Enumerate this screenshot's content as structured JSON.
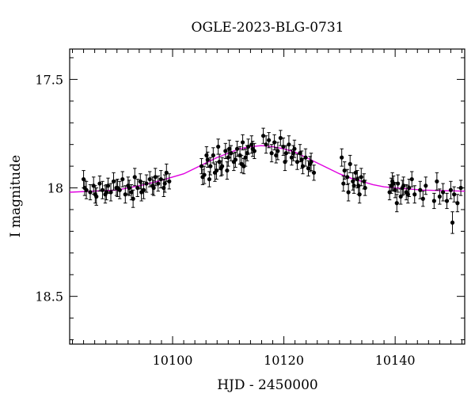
{
  "chart_data": {
    "type": "scatter",
    "title": "OGLE-2023-BLG-0731",
    "xlabel": "HJD - 2450000",
    "ylabel": "I magnitude",
    "xlim": [
      10081.5,
      10152.5
    ],
    "ylim": [
      18.72,
      17.36
    ],
    "y_inverted": true,
    "grid": false,
    "legend": "none",
    "x_ticks": [
      10100,
      10120,
      10140
    ],
    "x_tick_labels": [
      "10100",
      "10120",
      "10140"
    ],
    "y_ticks": [
      17.5,
      18,
      18.5
    ],
    "y_tick_labels": [
      "17.5",
      "18",
      "18.5"
    ],
    "colors": {
      "points": "#000000",
      "model": "#e000e0"
    },
    "model": {
      "type": "line",
      "x": [
        10081.5,
        10090,
        10095,
        10098,
        10100,
        10102,
        10104,
        10106,
        10108,
        10110,
        10112,
        10114,
        10116,
        10118,
        10120,
        10122,
        10124,
        10126,
        10128,
        10130,
        10132,
        10134,
        10136,
        10138,
        10140,
        10145,
        10152.5
      ],
      "y": [
        18.02,
        18.01,
        17.985,
        17.965,
        17.95,
        17.935,
        17.91,
        17.885,
        17.86,
        17.84,
        17.82,
        17.81,
        17.805,
        17.81,
        17.82,
        17.835,
        17.86,
        17.885,
        17.91,
        17.935,
        17.955,
        17.97,
        17.985,
        17.995,
        18.0,
        18.01,
        18.015
      ]
    },
    "points": {
      "x": [
        10084,
        10084.5,
        10085.2,
        10085.8,
        10086.3,
        10086.9,
        10087.4,
        10087.9,
        10088.4,
        10088.9,
        10089.4,
        10089.9,
        10090.5,
        10091.0,
        10091.5,
        10092.0,
        10092.6,
        10093.2,
        10093.7,
        10094.2,
        10094.8,
        10095.3,
        10095.9,
        10096.4,
        10096.9,
        10097.4,
        10097.9,
        10098.4,
        10098.9,
        10099.4,
        10084.2,
        10086.1,
        10088.1,
        10090.1,
        10092.2,
        10094.4,
        10096.6,
        10098.6,
        10092.9,
        10105.2,
        10105.7,
        10106.3,
        10106.8,
        10107.3,
        10107.9,
        10108.4,
        10108.9,
        10109.5,
        10110.0,
        10110.5,
        10111.0,
        10111.6,
        10112.1,
        10112.6,
        10113.1,
        10113.6,
        10114.2,
        10114.7,
        10105.4,
        10106.6,
        10107.6,
        10108.7,
        10109.8,
        10111.3,
        10112.4,
        10113.4,
        10114.4,
        10106.1,
        10108.2,
        10110.2,
        10112.8,
        10116.3,
        10116.8,
        10117.3,
        10117.8,
        10118.3,
        10118.9,
        10119.4,
        10119.9,
        10120.4,
        10120.9,
        10121.4,
        10121.9,
        10122.4,
        10122.9,
        10123.4,
        10123.9,
        10124.4,
        10124.9,
        10125.4,
        10118.6,
        10120.2,
        10121.7,
        10123.2,
        10124.7,
        10130.4,
        10130.9,
        10131.4,
        10131.9,
        10132.4,
        10132.9,
        10133.4,
        10133.9,
        10134.4,
        10130.7,
        10131.6,
        10132.6,
        10133.6,
        10134.6,
        10133.2,
        10139.0,
        10139.5,
        10140.0,
        10140.5,
        10141.0,
        10141.5,
        10142.0,
        10142.5,
        10143.0,
        10143.5,
        10139.3,
        10140.3,
        10141.3,
        10142.3,
        10139.7,
        10144.5,
        10145.0,
        10145.5,
        10147.0,
        10147.5,
        10148.0,
        10148.6,
        10149.3,
        10150.0,
        10150.6,
        10151.2,
        10151.8,
        10150.3
      ],
      "y": [
        17.96,
        18.01,
        18.02,
        17.99,
        18.04,
        17.98,
        18.01,
        18.03,
        17.99,
        18.02,
        17.97,
        18.0,
        18.01,
        17.96,
        18.03,
        17.99,
        18.02,
        17.95,
        18.0,
        17.97,
        18.01,
        17.98,
        17.96,
        17.99,
        17.95,
        17.98,
        17.96,
        18.0,
        17.93,
        17.97,
        18.0,
        18.03,
        18.02,
        18.0,
        18.0,
        18.02,
        18.0,
        17.98,
        18.05,
        17.9,
        17.94,
        17.87,
        17.9,
        17.85,
        17.92,
        17.88,
        17.9,
        17.83,
        17.86,
        17.84,
        17.88,
        17.82,
        17.85,
        17.79,
        17.86,
        17.81,
        17.8,
        17.83,
        17.95,
        17.96,
        17.93,
        17.91,
        17.92,
        17.87,
        17.89,
        17.84,
        17.82,
        17.85,
        17.81,
        17.82,
        17.9,
        17.76,
        17.8,
        17.78,
        17.84,
        17.79,
        17.83,
        17.77,
        17.81,
        17.84,
        17.8,
        17.86,
        17.82,
        17.88,
        17.84,
        17.9,
        17.86,
        17.91,
        17.88,
        17.93,
        17.85,
        17.88,
        17.84,
        17.87,
        17.89,
        17.86,
        17.92,
        17.95,
        17.89,
        17.97,
        17.93,
        17.99,
        17.95,
        17.97,
        17.98,
        18.02,
        17.99,
        18.03,
        18.0,
        17.96,
        18.02,
        17.97,
        18.01,
        17.98,
        18.04,
        17.99,
        18.02,
        18.0,
        17.96,
        18.03,
        17.99,
        18.07,
        18.0,
        18.03,
        17.98,
        18.01,
        18.05,
        17.99,
        18.06,
        17.97,
        18.04,
        18.02,
        18.06,
        18.01,
        18.03,
        18.07,
        18.0,
        18.16
      ],
      "err": [
        0.04,
        0.04,
        0.035,
        0.04,
        0.04,
        0.035,
        0.04,
        0.04,
        0.035,
        0.04,
        0.04,
        0.035,
        0.04,
        0.035,
        0.04,
        0.04,
        0.035,
        0.04,
        0.04,
        0.035,
        0.04,
        0.04,
        0.035,
        0.04,
        0.04,
        0.035,
        0.04,
        0.04,
        0.04,
        0.035,
        0.035,
        0.04,
        0.035,
        0.04,
        0.035,
        0.04,
        0.035,
        0.04,
        0.04,
        0.035,
        0.04,
        0.035,
        0.04,
        0.035,
        0.04,
        0.035,
        0.04,
        0.035,
        0.04,
        0.035,
        0.04,
        0.035,
        0.04,
        0.035,
        0.04,
        0.035,
        0.04,
        0.035,
        0.035,
        0.035,
        0.04,
        0.035,
        0.04,
        0.035,
        0.04,
        0.035,
        0.035,
        0.04,
        0.035,
        0.04,
        0.035,
        0.035,
        0.04,
        0.035,
        0.04,
        0.035,
        0.04,
        0.035,
        0.04,
        0.035,
        0.04,
        0.035,
        0.04,
        0.035,
        0.04,
        0.035,
        0.04,
        0.035,
        0.04,
        0.035,
        0.035,
        0.04,
        0.035,
        0.04,
        0.035,
        0.04,
        0.04,
        0.035,
        0.04,
        0.04,
        0.035,
        0.04,
        0.04,
        0.035,
        0.035,
        0.04,
        0.035,
        0.04,
        0.035,
        0.04,
        0.035,
        0.04,
        0.035,
        0.04,
        0.035,
        0.04,
        0.035,
        0.04,
        0.035,
        0.04,
        0.035,
        0.04,
        0.035,
        0.04,
        0.035,
        0.04,
        0.035,
        0.04,
        0.035,
        0.04,
        0.035,
        0.04,
        0.035,
        0.04,
        0.035,
        0.04,
        0.035,
        0.05
      ]
    }
  }
}
